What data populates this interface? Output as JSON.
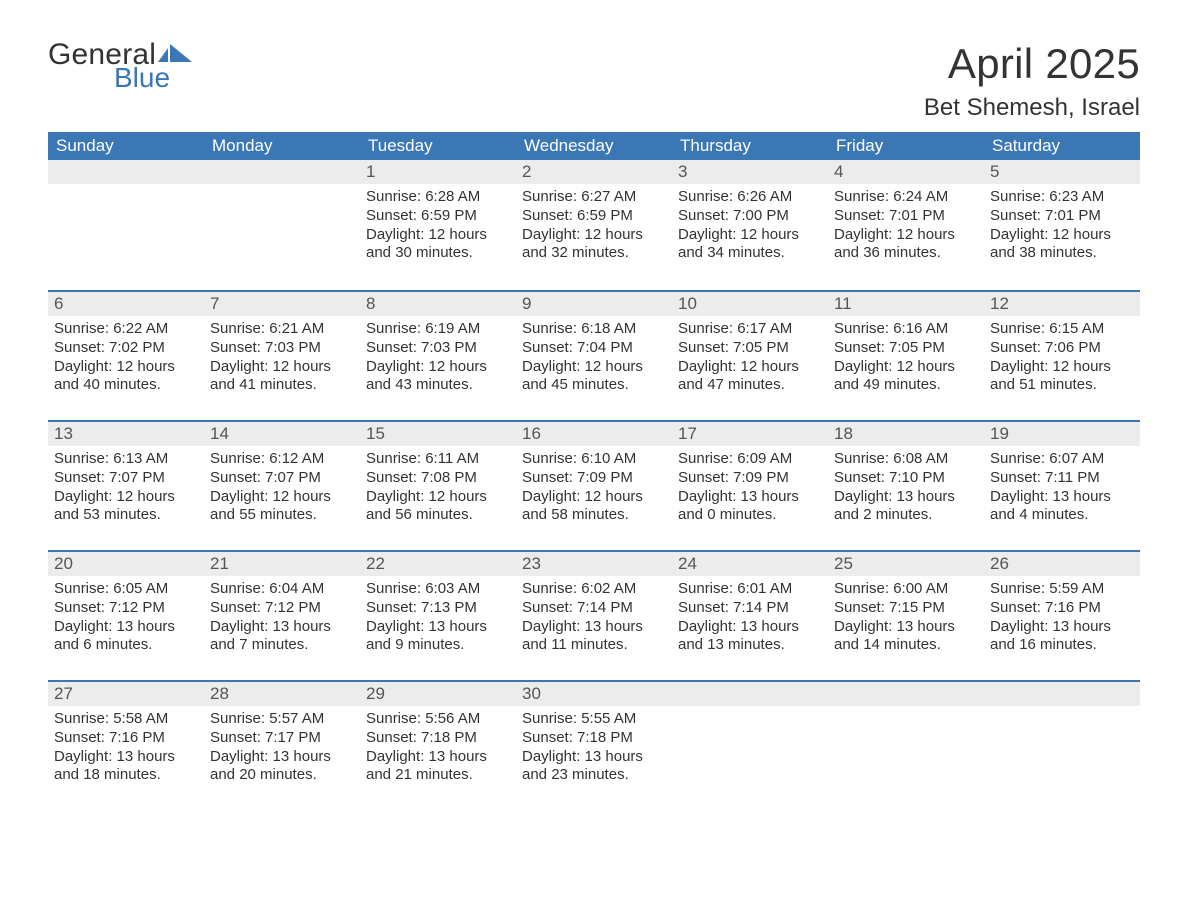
{
  "brand": {
    "word1": "General",
    "word2": "Blue",
    "word1_color": "#333333",
    "word2_color": "#3b77b5",
    "flag_color": "#3b77b5"
  },
  "title": {
    "month_year": "April 2025",
    "location": "Bet Shemesh, Israel"
  },
  "styling": {
    "header_bg": "#3b77b5",
    "header_fg": "#ffffff",
    "daynum_bg": "#ececec",
    "row_divider": "#3b77b5",
    "text_color": "#333333",
    "body_fontsize": 15,
    "header_fontsize": 17,
    "title_fontsize": 42,
    "location_fontsize": 24
  },
  "day_names": [
    "Sunday",
    "Monday",
    "Tuesday",
    "Wednesday",
    "Thursday",
    "Friday",
    "Saturday"
  ],
  "weeks": [
    [
      null,
      null,
      {
        "n": "1",
        "sunrise": "Sunrise: 6:28 AM",
        "sunset": "Sunset: 6:59 PM",
        "dl1": "Daylight: 12 hours",
        "dl2": "and 30 minutes."
      },
      {
        "n": "2",
        "sunrise": "Sunrise: 6:27 AM",
        "sunset": "Sunset: 6:59 PM",
        "dl1": "Daylight: 12 hours",
        "dl2": "and 32 minutes."
      },
      {
        "n": "3",
        "sunrise": "Sunrise: 6:26 AM",
        "sunset": "Sunset: 7:00 PM",
        "dl1": "Daylight: 12 hours",
        "dl2": "and 34 minutes."
      },
      {
        "n": "4",
        "sunrise": "Sunrise: 6:24 AM",
        "sunset": "Sunset: 7:01 PM",
        "dl1": "Daylight: 12 hours",
        "dl2": "and 36 minutes."
      },
      {
        "n": "5",
        "sunrise": "Sunrise: 6:23 AM",
        "sunset": "Sunset: 7:01 PM",
        "dl1": "Daylight: 12 hours",
        "dl2": "and 38 minutes."
      }
    ],
    [
      {
        "n": "6",
        "sunrise": "Sunrise: 6:22 AM",
        "sunset": "Sunset: 7:02 PM",
        "dl1": "Daylight: 12 hours",
        "dl2": "and 40 minutes."
      },
      {
        "n": "7",
        "sunrise": "Sunrise: 6:21 AM",
        "sunset": "Sunset: 7:03 PM",
        "dl1": "Daylight: 12 hours",
        "dl2": "and 41 minutes."
      },
      {
        "n": "8",
        "sunrise": "Sunrise: 6:19 AM",
        "sunset": "Sunset: 7:03 PM",
        "dl1": "Daylight: 12 hours",
        "dl2": "and 43 minutes."
      },
      {
        "n": "9",
        "sunrise": "Sunrise: 6:18 AM",
        "sunset": "Sunset: 7:04 PM",
        "dl1": "Daylight: 12 hours",
        "dl2": "and 45 minutes."
      },
      {
        "n": "10",
        "sunrise": "Sunrise: 6:17 AM",
        "sunset": "Sunset: 7:05 PM",
        "dl1": "Daylight: 12 hours",
        "dl2": "and 47 minutes."
      },
      {
        "n": "11",
        "sunrise": "Sunrise: 6:16 AM",
        "sunset": "Sunset: 7:05 PM",
        "dl1": "Daylight: 12 hours",
        "dl2": "and 49 minutes."
      },
      {
        "n": "12",
        "sunrise": "Sunrise: 6:15 AM",
        "sunset": "Sunset: 7:06 PM",
        "dl1": "Daylight: 12 hours",
        "dl2": "and 51 minutes."
      }
    ],
    [
      {
        "n": "13",
        "sunrise": "Sunrise: 6:13 AM",
        "sunset": "Sunset: 7:07 PM",
        "dl1": "Daylight: 12 hours",
        "dl2": "and 53 minutes."
      },
      {
        "n": "14",
        "sunrise": "Sunrise: 6:12 AM",
        "sunset": "Sunset: 7:07 PM",
        "dl1": "Daylight: 12 hours",
        "dl2": "and 55 minutes."
      },
      {
        "n": "15",
        "sunrise": "Sunrise: 6:11 AM",
        "sunset": "Sunset: 7:08 PM",
        "dl1": "Daylight: 12 hours",
        "dl2": "and 56 minutes."
      },
      {
        "n": "16",
        "sunrise": "Sunrise: 6:10 AM",
        "sunset": "Sunset: 7:09 PM",
        "dl1": "Daylight: 12 hours",
        "dl2": "and 58 minutes."
      },
      {
        "n": "17",
        "sunrise": "Sunrise: 6:09 AM",
        "sunset": "Sunset: 7:09 PM",
        "dl1": "Daylight: 13 hours",
        "dl2": "and 0 minutes."
      },
      {
        "n": "18",
        "sunrise": "Sunrise: 6:08 AM",
        "sunset": "Sunset: 7:10 PM",
        "dl1": "Daylight: 13 hours",
        "dl2": "and 2 minutes."
      },
      {
        "n": "19",
        "sunrise": "Sunrise: 6:07 AM",
        "sunset": "Sunset: 7:11 PM",
        "dl1": "Daylight: 13 hours",
        "dl2": "and 4 minutes."
      }
    ],
    [
      {
        "n": "20",
        "sunrise": "Sunrise: 6:05 AM",
        "sunset": "Sunset: 7:12 PM",
        "dl1": "Daylight: 13 hours",
        "dl2": "and 6 minutes."
      },
      {
        "n": "21",
        "sunrise": "Sunrise: 6:04 AM",
        "sunset": "Sunset: 7:12 PM",
        "dl1": "Daylight: 13 hours",
        "dl2": "and 7 minutes."
      },
      {
        "n": "22",
        "sunrise": "Sunrise: 6:03 AM",
        "sunset": "Sunset: 7:13 PM",
        "dl1": "Daylight: 13 hours",
        "dl2": "and 9 minutes."
      },
      {
        "n": "23",
        "sunrise": "Sunrise: 6:02 AM",
        "sunset": "Sunset: 7:14 PM",
        "dl1": "Daylight: 13 hours",
        "dl2": "and 11 minutes."
      },
      {
        "n": "24",
        "sunrise": "Sunrise: 6:01 AM",
        "sunset": "Sunset: 7:14 PM",
        "dl1": "Daylight: 13 hours",
        "dl2": "and 13 minutes."
      },
      {
        "n": "25",
        "sunrise": "Sunrise: 6:00 AM",
        "sunset": "Sunset: 7:15 PM",
        "dl1": "Daylight: 13 hours",
        "dl2": "and 14 minutes."
      },
      {
        "n": "26",
        "sunrise": "Sunrise: 5:59 AM",
        "sunset": "Sunset: 7:16 PM",
        "dl1": "Daylight: 13 hours",
        "dl2": "and 16 minutes."
      }
    ],
    [
      {
        "n": "27",
        "sunrise": "Sunrise: 5:58 AM",
        "sunset": "Sunset: 7:16 PM",
        "dl1": "Daylight: 13 hours",
        "dl2": "and 18 minutes."
      },
      {
        "n": "28",
        "sunrise": "Sunrise: 5:57 AM",
        "sunset": "Sunset: 7:17 PM",
        "dl1": "Daylight: 13 hours",
        "dl2": "and 20 minutes."
      },
      {
        "n": "29",
        "sunrise": "Sunrise: 5:56 AM",
        "sunset": "Sunset: 7:18 PM",
        "dl1": "Daylight: 13 hours",
        "dl2": "and 21 minutes."
      },
      {
        "n": "30",
        "sunrise": "Sunrise: 5:55 AM",
        "sunset": "Sunset: 7:18 PM",
        "dl1": "Daylight: 13 hours",
        "dl2": "and 23 minutes."
      },
      null,
      null,
      null
    ]
  ]
}
